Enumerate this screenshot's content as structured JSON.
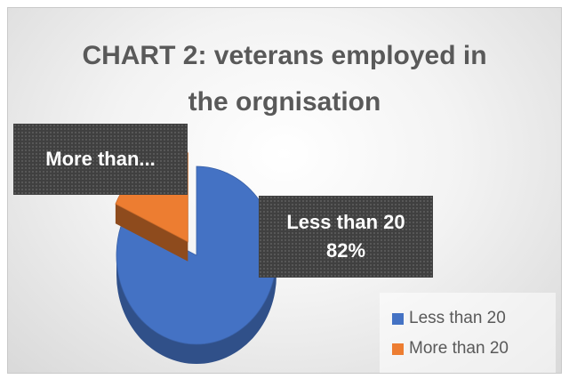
{
  "chart_data": {
    "type": "pie",
    "title": "CHART 2: veterans employed in the orgnisation",
    "title_lines": [
      "CHART 2: veterans employed in",
      "the orgnisation"
    ],
    "categories": [
      "Less than 20",
      "More than 20"
    ],
    "values": [
      82,
      18
    ],
    "unit": "%",
    "colors": [
      "#4472c4",
      "#ed7d31"
    ],
    "data_labels": [
      {
        "category": "Less than 20",
        "lines": [
          "Less than 20",
          "82%"
        ]
      },
      {
        "category": "More than 20",
        "lines": [
          "More than..."
        ]
      }
    ],
    "legend": {
      "placement": "bottom-right",
      "entries": [
        "Less than 20",
        "More than 20"
      ]
    }
  }
}
